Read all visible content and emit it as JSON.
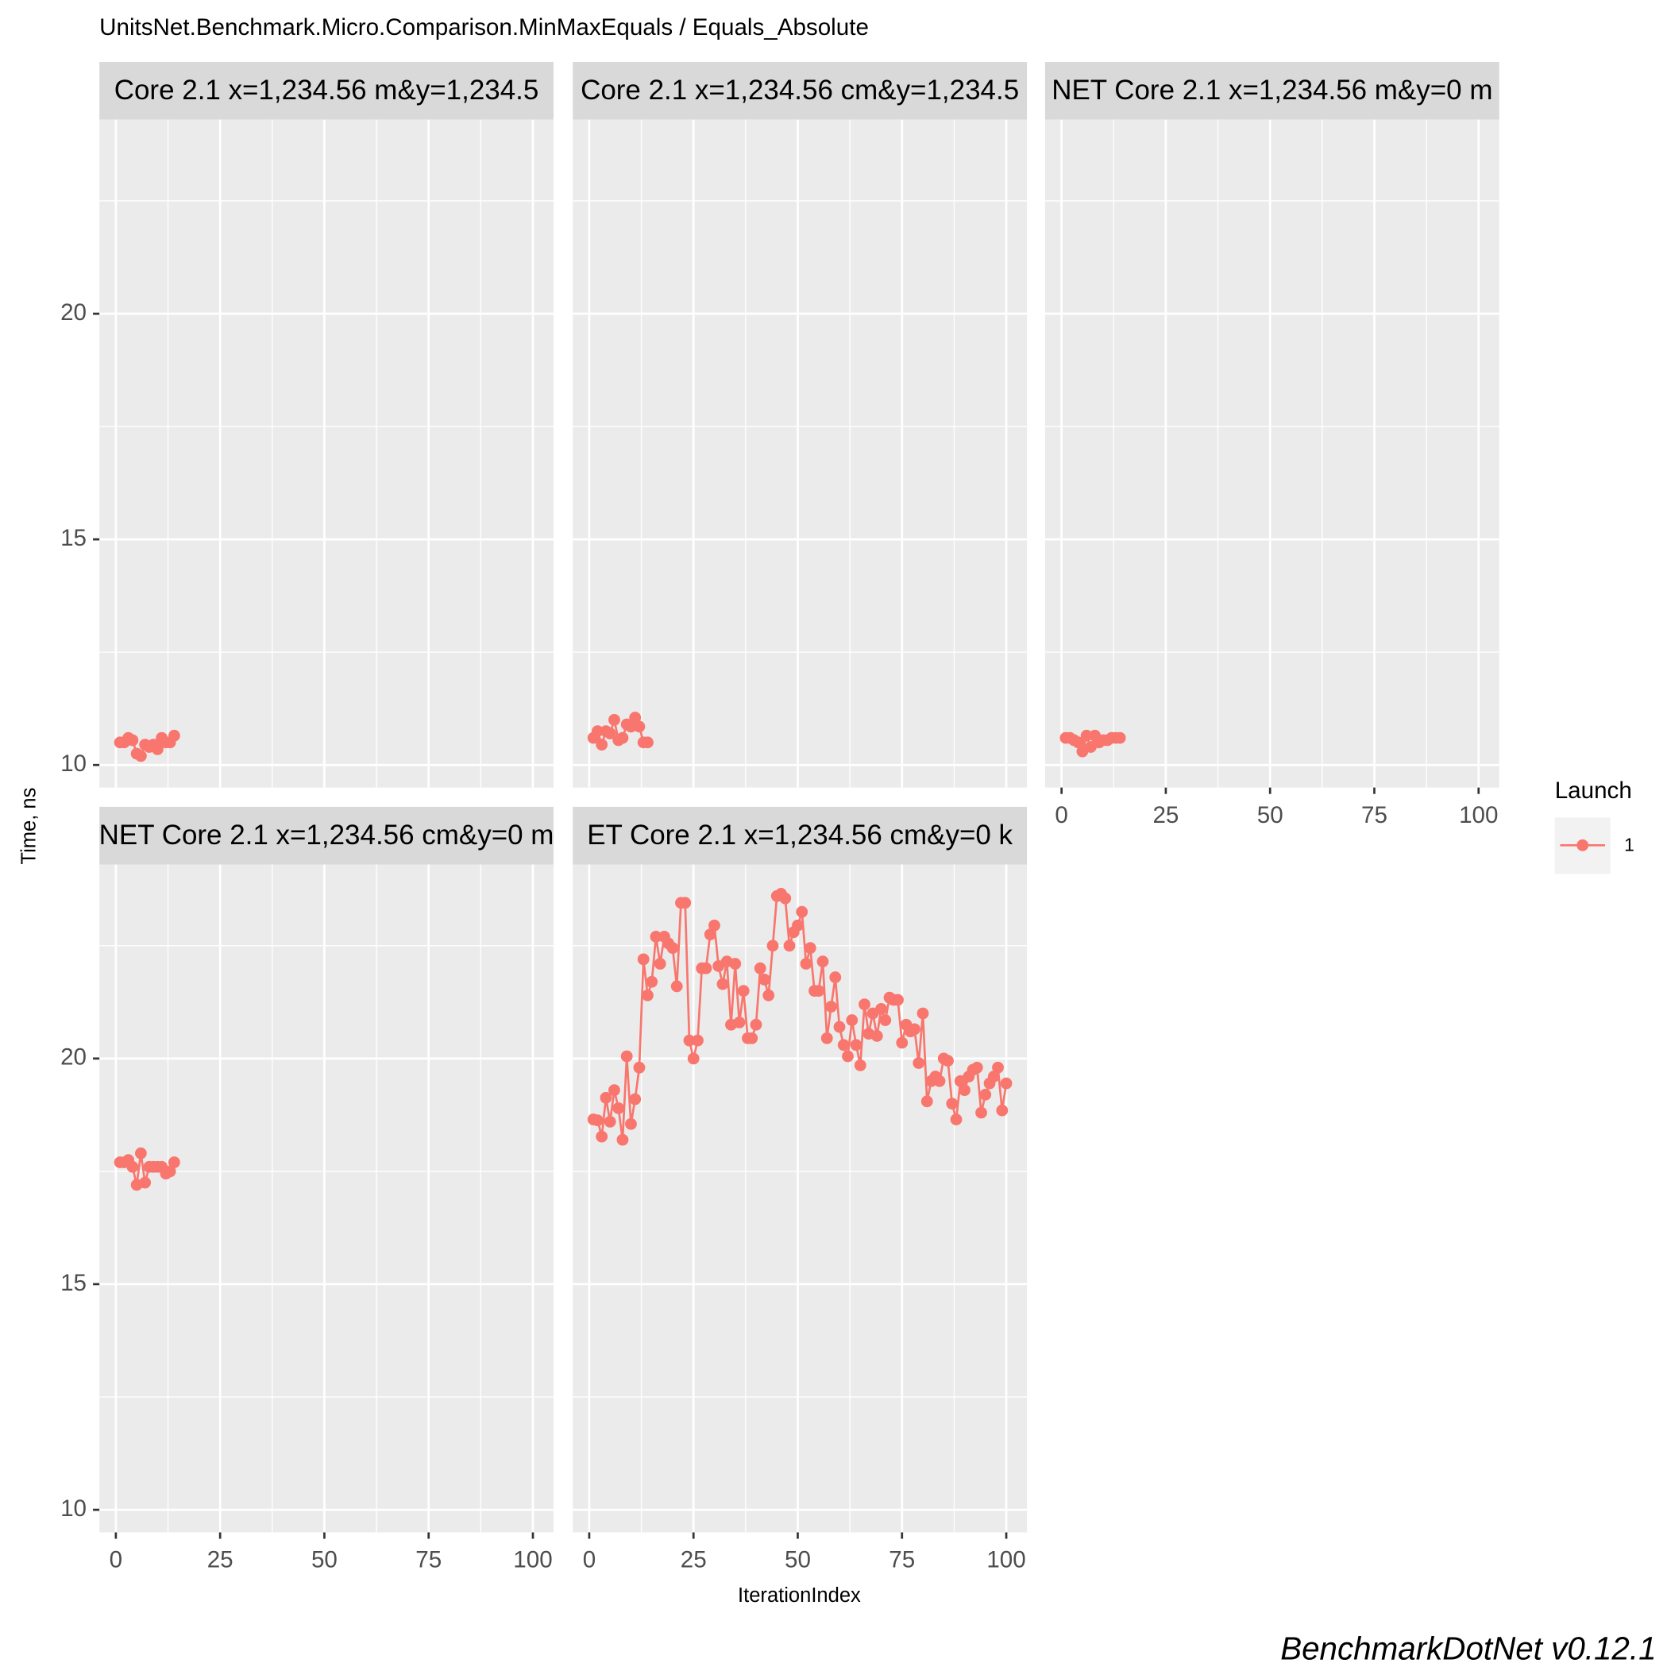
{
  "title": "UnitsNet.Benchmark.Micro.Comparison.MinMaxEquals / Equals_Absolute",
  "x_label": "IterationIndex",
  "y_label": "Time, ns",
  "legend_title": "Launch",
  "caption": "BenchmarkDotNet v0.12.1",
  "chart_data": [
    {
      "type": "line",
      "title": "Core 2.1 x=1,234.56 m&y=1,234.5",
      "x": [
        1,
        2,
        3,
        4,
        5,
        6,
        7,
        8,
        9,
        10,
        11,
        12,
        13,
        14
      ],
      "series": [
        {
          "name": "1",
          "color": "#f8766d",
          "values": [
            10.5,
            10.5,
            10.6,
            10.55,
            10.25,
            10.2,
            10.45,
            10.4,
            10.45,
            10.35,
            10.6,
            10.5,
            10.5,
            10.65
          ]
        }
      ],
      "xlim": [
        -3.95,
        104.95
      ],
      "xticks": [
        0,
        25,
        50,
        75,
        100
      ],
      "ylim": [
        9.5,
        24.3
      ],
      "yticks": [
        10,
        15,
        20
      ],
      "grid": true
    },
    {
      "type": "line",
      "title": "Core 2.1 x=1,234.56 cm&y=1,234.5",
      "x": [
        1,
        2,
        3,
        4,
        5,
        6,
        7,
        8,
        9,
        10,
        11,
        12,
        13,
        14
      ],
      "series": [
        {
          "name": "1",
          "color": "#f8766d",
          "values": [
            10.6,
            10.75,
            10.45,
            10.75,
            10.7,
            11.0,
            10.55,
            10.6,
            10.9,
            10.85,
            11.05,
            10.85,
            10.5,
            10.5
          ]
        }
      ],
      "xlim": [
        -3.95,
        104.95
      ],
      "xticks": [
        0,
        25,
        50,
        75,
        100
      ],
      "ylim": [
        9.5,
        24.3
      ],
      "yticks": [
        10,
        15,
        20
      ],
      "grid": true
    },
    {
      "type": "line",
      "title": "NET Core 2.1 x=1,234.56 m&y=0 m",
      "x": [
        1,
        2,
        3,
        4,
        5,
        6,
        7,
        8,
        9,
        10,
        11,
        12,
        13,
        14
      ],
      "series": [
        {
          "name": "1",
          "color": "#f8766d",
          "values": [
            10.6,
            10.6,
            10.55,
            10.5,
            10.3,
            10.65,
            10.4,
            10.65,
            10.5,
            10.55,
            10.55,
            10.6,
            10.6,
            10.6
          ]
        }
      ],
      "xlim": [
        -3.95,
        104.95
      ],
      "xticks": [
        0,
        25,
        50,
        75,
        100
      ],
      "ylim": [
        9.5,
        24.3
      ],
      "yticks": [
        10,
        15,
        20
      ],
      "grid": true
    },
    {
      "type": "line",
      "title": "NET Core 2.1 x=1,234.56 cm&y=0 m",
      "x": [
        1,
        2,
        3,
        4,
        5,
        6,
        7,
        8,
        9,
        10,
        11,
        12,
        13,
        14
      ],
      "series": [
        {
          "name": "1",
          "color": "#f8766d",
          "values": [
            17.7,
            17.7,
            17.75,
            17.6,
            17.2,
            17.9,
            17.25,
            17.6,
            17.6,
            17.6,
            17.6,
            17.45,
            17.5,
            17.7
          ]
        }
      ],
      "xlim": [
        -3.95,
        104.95
      ],
      "xticks": [
        0,
        25,
        50,
        75,
        100
      ],
      "ylim": [
        9.5,
        24.3
      ],
      "yticks": [
        10,
        15,
        20
      ],
      "grid": true
    },
    {
      "type": "line",
      "title": "ET Core 2.1 x=1,234.56 cm&y=0 k",
      "x": [
        1,
        2,
        3,
        4,
        5,
        6,
        7,
        8,
        9,
        10,
        11,
        12,
        13,
        14,
        15,
        16,
        17,
        18,
        19,
        20,
        21,
        22,
        23,
        24,
        25,
        26,
        27,
        28,
        29,
        30,
        31,
        32,
        33,
        34,
        35,
        36,
        37,
        38,
        39,
        40,
        41,
        42,
        43,
        44,
        45,
        46,
        47,
        48,
        49,
        50,
        51,
        52,
        53,
        54,
        55,
        56,
        57,
        58,
        59,
        60,
        61,
        62,
        63,
        64,
        65,
        66,
        67,
        68,
        69,
        70,
        71,
        72,
        73,
        74,
        75,
        76,
        77,
        78,
        79,
        80,
        81,
        82,
        83,
        84,
        85,
        86,
        87,
        88,
        89,
        90,
        91,
        92,
        93,
        94,
        95,
        96,
        97,
        98,
        99,
        100
      ],
      "series": [
        {
          "name": "1",
          "color": "#f8766d",
          "values": [
            18.65,
            18.63,
            18.27,
            19.13,
            18.6,
            19.3,
            18.9,
            18.2,
            20.05,
            18.55,
            19.1,
            19.8,
            22.2,
            21.4,
            21.7,
            22.7,
            22.1,
            22.7,
            22.55,
            22.45,
            21.6,
            23.45,
            23.45,
            20.4,
            20.0,
            20.4,
            22.0,
            22.0,
            22.75,
            22.95,
            22.05,
            21.65,
            22.15,
            20.75,
            22.1,
            20.8,
            21.5,
            20.45,
            20.45,
            20.75,
            22.0,
            21.75,
            21.4,
            22.5,
            23.6,
            23.65,
            23.55,
            22.5,
            22.8,
            22.95,
            23.25,
            22.1,
            22.45,
            21.5,
            21.5,
            22.15,
            20.45,
            21.15,
            21.8,
            20.7,
            20.3,
            20.05,
            20.85,
            20.3,
            19.85,
            21.2,
            20.55,
            21.0,
            20.5,
            21.1,
            20.85,
            21.35,
            21.3,
            21.3,
            20.35,
            20.75,
            20.6,
            20.65,
            19.9,
            21.0,
            19.05,
            19.5,
            19.6,
            19.5,
            20.0,
            19.95,
            19.0,
            18.65,
            19.5,
            19.3,
            19.6,
            19.75,
            19.8,
            18.8,
            19.2,
            19.45,
            19.6,
            19.8,
            18.85,
            19.45
          ]
        }
      ],
      "xlim": [
        -3.95,
        104.95
      ],
      "xticks": [
        0,
        25,
        50,
        75,
        100
      ],
      "ylim": [
        9.5,
        24.3
      ],
      "yticks": [
        10,
        15,
        20
      ],
      "grid": true
    }
  ]
}
